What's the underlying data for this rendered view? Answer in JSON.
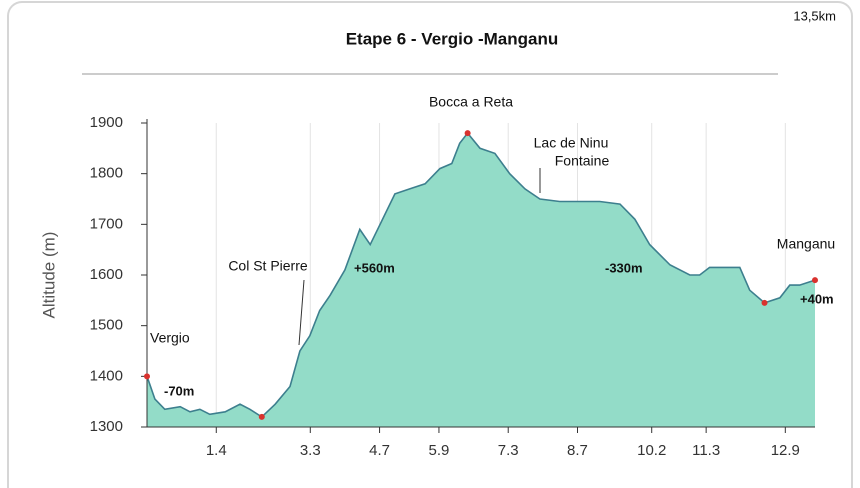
{
  "chart_data": {
    "type": "area",
    "title": "Etape 6 - Vergio -Manganu",
    "distance_label": "13,5km",
    "y_label": "Altitude (m)",
    "color": "#93dcc8",
    "line_color": "#3d7f8e",
    "marker_color": "#d9322e",
    "grid": true,
    "xlim": [
      0,
      13.5
    ],
    "xticks": [
      1.4,
      3.3,
      4.7,
      5.9,
      7.3,
      8.7,
      10.2,
      11.3,
      12.9
    ],
    "ylim": [
      1300,
      1900
    ],
    "yticks": [
      1300,
      1400,
      1500,
      1600,
      1700,
      1800,
      1900
    ],
    "x": [
      0,
      0.16,
      0.36,
      0.67,
      0.87,
      1.07,
      1.27,
      1.58,
      1.88,
      2.08,
      2.32,
      2.59,
      2.89,
      3.09,
      3.29,
      3.49,
      3.7,
      4.0,
      4.3,
      4.51,
      4.71,
      5.01,
      5.31,
      5.62,
      5.92,
      6.16,
      6.32,
      6.48,
      6.73,
      7.03,
      7.33,
      7.64,
      7.94,
      8.34,
      9.15,
      9.56,
      9.86,
      10.16,
      10.57,
      10.97,
      11.17,
      11.37,
      11.98,
      12.18,
      12.48,
      12.79,
      12.99,
      13.19,
      13.5
    ],
    "values": [
      1400,
      1355,
      1335,
      1340,
      1330,
      1335,
      1325,
      1330,
      1345,
      1335,
      1320,
      1345,
      1380,
      1450,
      1480,
      1530,
      1560,
      1610,
      1690,
      1660,
      1700,
      1760,
      1770,
      1780,
      1810,
      1820,
      1860,
      1880,
      1850,
      1840,
      1800,
      1770,
      1750,
      1745,
      1745,
      1740,
      1710,
      1660,
      1620,
      1600,
      1600,
      1615,
      1615,
      1570,
      1545,
      1555,
      1580,
      1580,
      1590
    ],
    "annotations": [
      "Vergio",
      "-70m",
      "Col St Pierre",
      "+560m",
      "Bocca a Reta",
      "Lac de Ninu",
      "Fontaine",
      "-330m",
      "Manganu",
      "+40m"
    ]
  }
}
